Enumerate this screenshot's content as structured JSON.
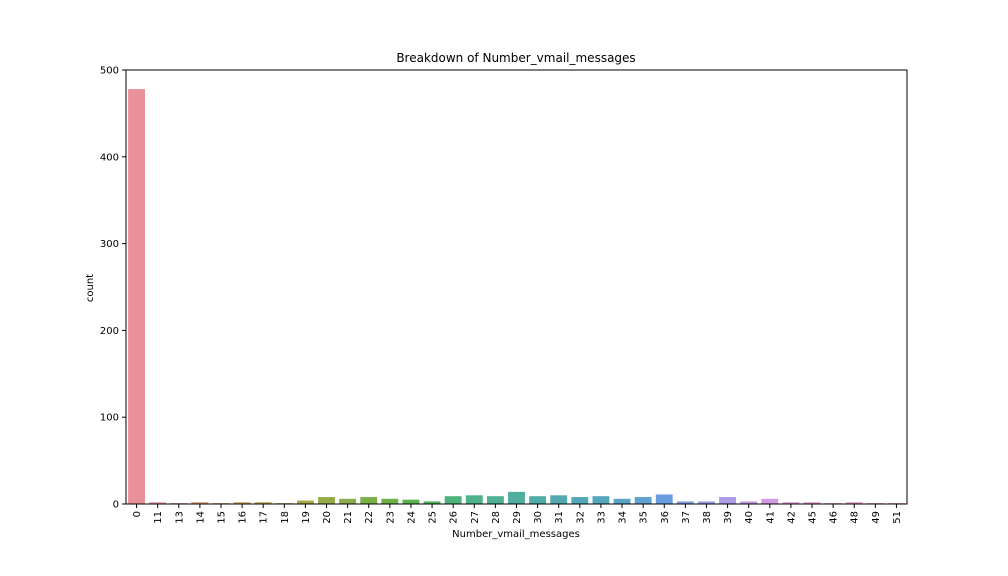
{
  "chart_data": {
    "type": "bar",
    "title": "Breakdown of Number_vmail_messages",
    "xlabel": "Number_vmail_messages",
    "ylabel": "count",
    "ylim": [
      0,
      500
    ],
    "yticks": [
      0,
      100,
      200,
      300,
      400,
      500
    ],
    "grid": false,
    "categories": [
      "0",
      "11",
      "13",
      "14",
      "15",
      "16",
      "17",
      "18",
      "19",
      "20",
      "21",
      "22",
      "23",
      "24",
      "25",
      "26",
      "27",
      "28",
      "29",
      "30",
      "31",
      "32",
      "33",
      "34",
      "35",
      "36",
      "37",
      "38",
      "39",
      "40",
      "41",
      "42",
      "45",
      "46",
      "48",
      "49",
      "51"
    ],
    "values": [
      478,
      2,
      1,
      2,
      1,
      2,
      2,
      1,
      4,
      8,
      6,
      8,
      6,
      5,
      3,
      9,
      10,
      9,
      14,
      9,
      10,
      8,
      9,
      6,
      8,
      11,
      3,
      3,
      8,
      3,
      6,
      2,
      2,
      1,
      2,
      1,
      1
    ],
    "colors": [
      "#ea9099",
      "#e9939e",
      "#e69397",
      "#e0966f",
      "#d39b64",
      "#c99f5b",
      "#c1a150",
      "#b5a34f",
      "#a7a84a",
      "#98aa48",
      "#8bac49",
      "#7baf47",
      "#6bb147",
      "#5bb34d",
      "#4eb55e",
      "#4fb27c",
      "#4fb18a",
      "#4fb096",
      "#50ae9f",
      "#51aca8",
      "#52aaae",
      "#53a8b6",
      "#55a6bc",
      "#59a3c5",
      "#5ea0ce",
      "#6a9de0",
      "#84a0e6",
      "#9b9ee6",
      "#ae9be6",
      "#c29ae4",
      "#d19ae2",
      "#dc95da",
      "#e493d2",
      "#e592c7",
      "#e691bb",
      "#e793ad",
      "#e895a2"
    ]
  }
}
